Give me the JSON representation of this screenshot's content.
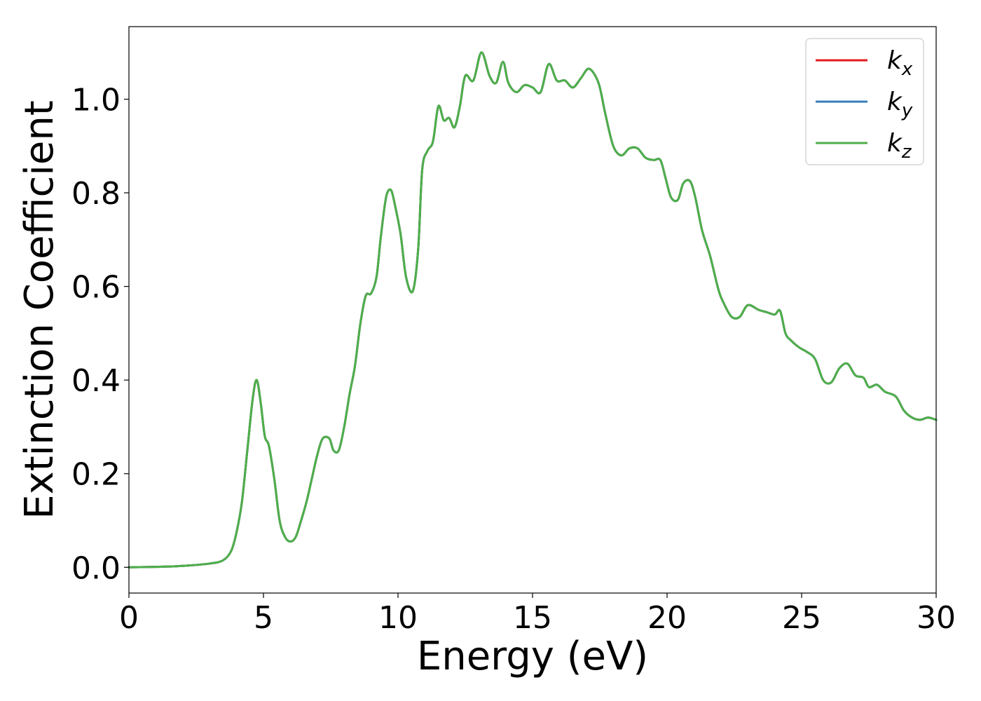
{
  "chart_data": {
    "type": "line",
    "title": "",
    "xlabel": "Energy (eV)",
    "ylabel": "Extinction Coefficient",
    "xlim": [
      0,
      30
    ],
    "ylim": [
      -0.055,
      1.155
    ],
    "xticks": [
      0,
      5,
      10,
      15,
      20,
      25,
      30
    ],
    "xtick_labels": [
      "0",
      "5",
      "10",
      "15",
      "20",
      "25",
      "30"
    ],
    "yticks": [
      0.0,
      0.2,
      0.4,
      0.6,
      0.8,
      1.0
    ],
    "ytick_labels": [
      "0.0",
      "0.2",
      "0.4",
      "0.6",
      "0.8",
      "1.0"
    ],
    "grid": false,
    "legend_position": "top-right",
    "x": [
      0,
      1,
      2,
      3,
      3.5,
      3.8,
      4.0,
      4.2,
      4.4,
      4.6,
      4.75,
      4.9,
      5.05,
      5.2,
      5.4,
      5.6,
      5.8,
      6.0,
      6.2,
      6.4,
      6.6,
      6.8,
      7.0,
      7.2,
      7.45,
      7.6,
      7.8,
      8.0,
      8.2,
      8.4,
      8.6,
      8.8,
      9.0,
      9.2,
      9.35,
      9.5,
      9.6,
      9.75,
      9.9,
      10.1,
      10.3,
      10.55,
      10.75,
      10.9,
      11.1,
      11.3,
      11.5,
      11.7,
      11.9,
      12.1,
      12.3,
      12.5,
      12.8,
      13.1,
      13.4,
      13.65,
      13.9,
      14.1,
      14.4,
      14.7,
      15.0,
      15.3,
      15.6,
      15.9,
      16.2,
      16.5,
      16.8,
      17.1,
      17.45,
      17.7,
      18.0,
      18.3,
      18.6,
      18.9,
      19.2,
      19.5,
      19.75,
      19.95,
      20.15,
      20.4,
      20.6,
      20.85,
      21.05,
      21.3,
      21.6,
      21.9,
      22.1,
      22.4,
      22.7,
      23.0,
      23.4,
      23.7,
      24.0,
      24.2,
      24.4,
      24.6,
      24.9,
      25.2,
      25.5,
      25.8,
      26.1,
      26.4,
      26.7,
      27.0,
      27.3,
      27.5,
      27.8,
      28.1,
      28.5,
      28.8,
      29.1,
      29.4,
      29.7,
      30.0
    ],
    "series": [
      {
        "name": "k_x",
        "color": "#e41a1c"
      },
      {
        "name": "k_y",
        "color": "#377eb8"
      },
      {
        "name": "k_z",
        "color": "#4daf4a"
      }
    ],
    "values": [
      0.0,
      0.001,
      0.003,
      0.008,
      0.015,
      0.035,
      0.075,
      0.14,
      0.25,
      0.36,
      0.4,
      0.35,
      0.28,
      0.26,
      0.19,
      0.1,
      0.065,
      0.055,
      0.065,
      0.1,
      0.14,
      0.19,
      0.24,
      0.275,
      0.275,
      0.25,
      0.25,
      0.3,
      0.37,
      0.43,
      0.52,
      0.58,
      0.585,
      0.62,
      0.7,
      0.77,
      0.8,
      0.805,
      0.77,
      0.71,
      0.62,
      0.59,
      0.68,
      0.85,
      0.89,
      0.91,
      0.985,
      0.955,
      0.96,
      0.94,
      0.985,
      1.05,
      1.04,
      1.1,
      1.05,
      1.035,
      1.08,
      1.035,
      1.015,
      1.03,
      1.025,
      1.015,
      1.075,
      1.04,
      1.04,
      1.025,
      1.045,
      1.065,
      1.035,
      0.97,
      0.9,
      0.88,
      0.895,
      0.895,
      0.875,
      0.87,
      0.87,
      0.83,
      0.79,
      0.785,
      0.82,
      0.825,
      0.79,
      0.72,
      0.665,
      0.595,
      0.565,
      0.535,
      0.535,
      0.56,
      0.55,
      0.545,
      0.54,
      0.548,
      0.5,
      0.485,
      0.47,
      0.46,
      0.445,
      0.4,
      0.395,
      0.425,
      0.435,
      0.41,
      0.405,
      0.385,
      0.39,
      0.375,
      0.365,
      0.335,
      0.32,
      0.315,
      0.32,
      0.315
    ]
  }
}
